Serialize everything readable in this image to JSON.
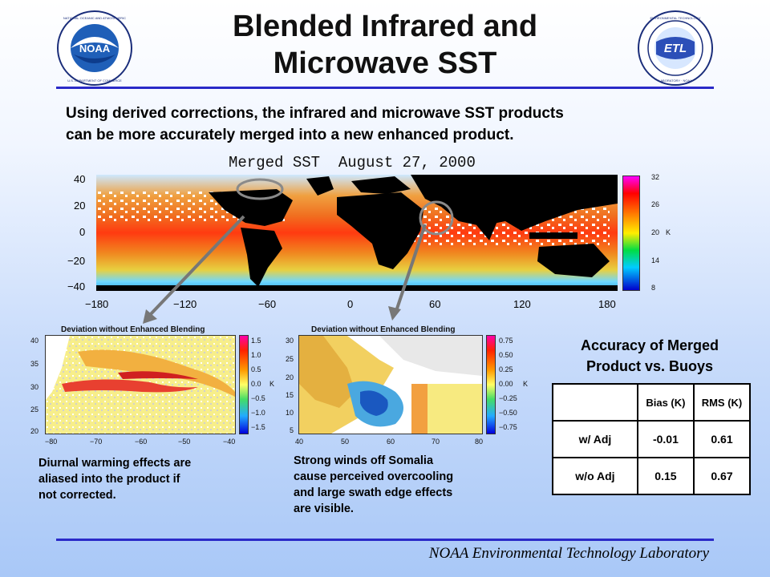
{
  "slide": {
    "title_line1": "Blended Infrared and",
    "title_line2": "Microwave SST",
    "subtitle_line1": "Using derived corrections, the infrared and microwave SST products",
    "subtitle_line2": "can be more accurately merged into a new enhanced product.",
    "footer": "NOAA Environmental Technology Laboratory"
  },
  "logos": {
    "noaa": {
      "center_text": "NOAA",
      "ring_text": "NATIONAL OCEANIC AND ATMOSPHERIC ADMINISTRATION · U.S. DEPARTMENT OF COMMERCE"
    },
    "etl": {
      "center_text": "ETL",
      "ring_text": "ENVIRONMENTAL TECHNOLOGY LABORATORY · NOAA"
    }
  },
  "main_map": {
    "title": "Merged SST  August 27, 2000",
    "y_ticks": [
      "40",
      "20",
      "0",
      "−20",
      "−40"
    ],
    "x_ticks": [
      "−180",
      "−120",
      "−60",
      "0",
      "60",
      "120",
      "180"
    ],
    "colorbar_ticks": [
      "32",
      "26",
      "20",
      "14",
      "8"
    ],
    "colorbar_unit": "K"
  },
  "inset_left": {
    "title": "Deviation without Enhanced Blending",
    "y_ticks": [
      "40",
      "35",
      "30",
      "25",
      "20"
    ],
    "x_ticks": [
      "−80",
      "−70",
      "−60",
      "−50",
      "−40"
    ],
    "colorbar_ticks": [
      "1.5",
      "1.0",
      "0.5",
      "0.0",
      "−0.5",
      "−1.0",
      "−1.5"
    ],
    "colorbar_unit": "K",
    "caption": [
      "Diurnal warming effects are",
      "aliased into the product if",
      "not corrected."
    ]
  },
  "inset_right": {
    "title": "Deviation without Enhanced Blending",
    "y_ticks": [
      "30",
      "25",
      "20",
      "15",
      "10",
      "5"
    ],
    "x_ticks": [
      "40",
      "50",
      "60",
      "70",
      "80"
    ],
    "colorbar_ticks": [
      "0.75",
      "0.50",
      "0.25",
      "0.00",
      "−0.25",
      "−0.50",
      "−0.75"
    ],
    "colorbar_unit": "K",
    "caption": [
      "Strong winds off Somalia",
      "cause perceived overcooling",
      "and large swath edge effects",
      "are visible."
    ]
  },
  "accuracy": {
    "title_line1": "Accuracy of Merged",
    "title_line2": "Product vs. Buoys",
    "headers": [
      "",
      "Bias (K)",
      "RMS (K)"
    ],
    "rows": [
      [
        "w/ Adj",
        "-0.01",
        "0.61"
      ],
      [
        "w/o Adj",
        "0.15",
        "0.67"
      ]
    ]
  }
}
